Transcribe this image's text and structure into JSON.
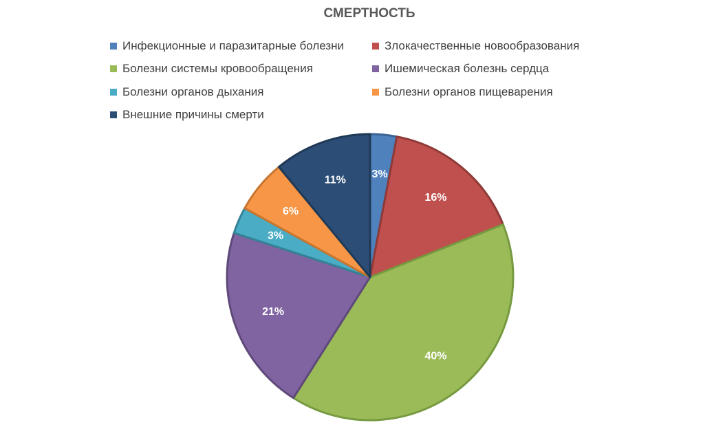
{
  "chart_data": {
    "type": "pie",
    "title": "СМЕРТНОСТЬ",
    "legend_position": "top",
    "slices": [
      {
        "name": "Инфекционные и паразитарные болезни",
        "value": 3,
        "label": "3%",
        "color": "#4F81BD",
        "border": "#3A6395"
      },
      {
        "name": "Злокачественные новообразования",
        "value": 16,
        "label": "16%",
        "color": "#C0504D",
        "border": "#8E3A38"
      },
      {
        "name": "Болезни системы кровообращения",
        "value": 40,
        "label": "40%",
        "color": "#9BBB59",
        "border": "#769A40"
      },
      {
        "name": "Ишемическая болезнь сердца",
        "value": 21,
        "label": "21%",
        "color": "#8064A2",
        "border": "#5E4979"
      },
      {
        "name": "Болезни органов дыхания",
        "value": 3,
        "label": "3%",
        "color": "#4BACC6",
        "border": "#338295"
      },
      {
        "name": "Болезни органов пищеварения",
        "value": 6,
        "label": "6%",
        "color": "#F79646",
        "border": "#C77630"
      },
      {
        "name": "Внешние причины смерти",
        "value": 11,
        "label": "11%",
        "color": "#2C4D75",
        "border": "#1F3957"
      }
    ]
  }
}
